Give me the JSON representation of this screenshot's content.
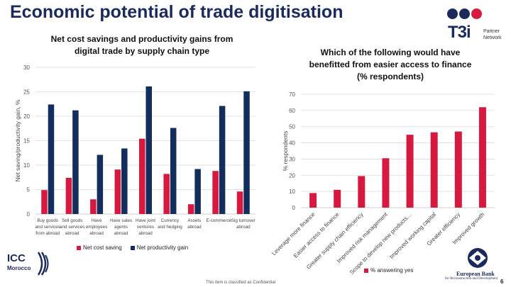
{
  "slide": {
    "title": "Economic potential of trade digitisation",
    "footer": "This item is classified as Confidential",
    "page_number": "6"
  },
  "logos": {
    "t3i_word": "T3i",
    "t3i_sub1": "Partner",
    "t3i_sub2": "Network",
    "icc_word": "ICC",
    "icc_sub": "Morocco",
    "ebrd_line1": "European Bank",
    "ebrd_line2": "for Reconstruction and Development"
  },
  "colors": {
    "red": "#d7193f",
    "navy": "#132d5c",
    "grid": "#d9d9d9",
    "t3i_dots": [
      "#1b2a5c",
      "#1b2a5c",
      "#d7193f"
    ]
  },
  "chart_data": [
    {
      "type": "bar",
      "title_line1": "Net cost savings and productivity gains from",
      "title_line2": "digital trade by supply chain type",
      "ylabel": "Net saving/productivity gain, %",
      "xlabel": "",
      "ylim": [
        0,
        30
      ],
      "yticks": [
        "0",
        "5",
        "10",
        "15",
        "20",
        "25",
        "30"
      ],
      "grid": true,
      "legend_position": "bottom",
      "categories": [
        [
          "Buy goods",
          "and services",
          "from abroad"
        ],
        [
          "Sell goods",
          "and services",
          "abroad"
        ],
        [
          "Have",
          "employees",
          "abroad"
        ],
        [
          "Have sales",
          "agents",
          "abroad"
        ],
        [
          "Have joint",
          "ventures",
          "abroad"
        ],
        [
          "Currency",
          "and hedging"
        ],
        [
          "Assets",
          "abroad"
        ],
        [
          "E-commerce"
        ],
        [
          "Sig turnover",
          "abroad"
        ]
      ],
      "series": [
        {
          "name": "Net cost saving",
          "color": "#d7193f",
          "values": [
            4.9,
            7.4,
            3.0,
            9.1,
            15.4,
            8.2,
            2.0,
            8.8,
            4.6
          ]
        },
        {
          "name": "Net productivity gain",
          "color": "#132d5c",
          "values": [
            22.4,
            21.2,
            12.1,
            13.4,
            26.1,
            17.6,
            9.2,
            22.1,
            25.1
          ]
        }
      ]
    },
    {
      "type": "bar",
      "title_line1": "Which of the following would have",
      "title_line2": "benefitted from easier access to finance",
      "title_line3": "(% respondents)",
      "ylabel": "% respondents",
      "xlabel": "",
      "ylim": [
        0,
        70
      ],
      "yticks": [
        "0",
        "10",
        "20",
        "30",
        "40",
        "50",
        "60",
        "70"
      ],
      "grid": true,
      "legend_position": "bottom",
      "categories": [
        "Leverage more finance",
        "Easier access to finance",
        "Greater supply chain efficiency",
        "Improved risk management",
        "Scope to develop new products…",
        "Improved working capital",
        "Greater efficiency",
        "Improved growth"
      ],
      "series": [
        {
          "name": "% answering yes",
          "color": "#d7193f",
          "values": [
            9,
            11,
            19.5,
            30.5,
            45,
            46.5,
            47,
            62
          ]
        }
      ]
    }
  ]
}
